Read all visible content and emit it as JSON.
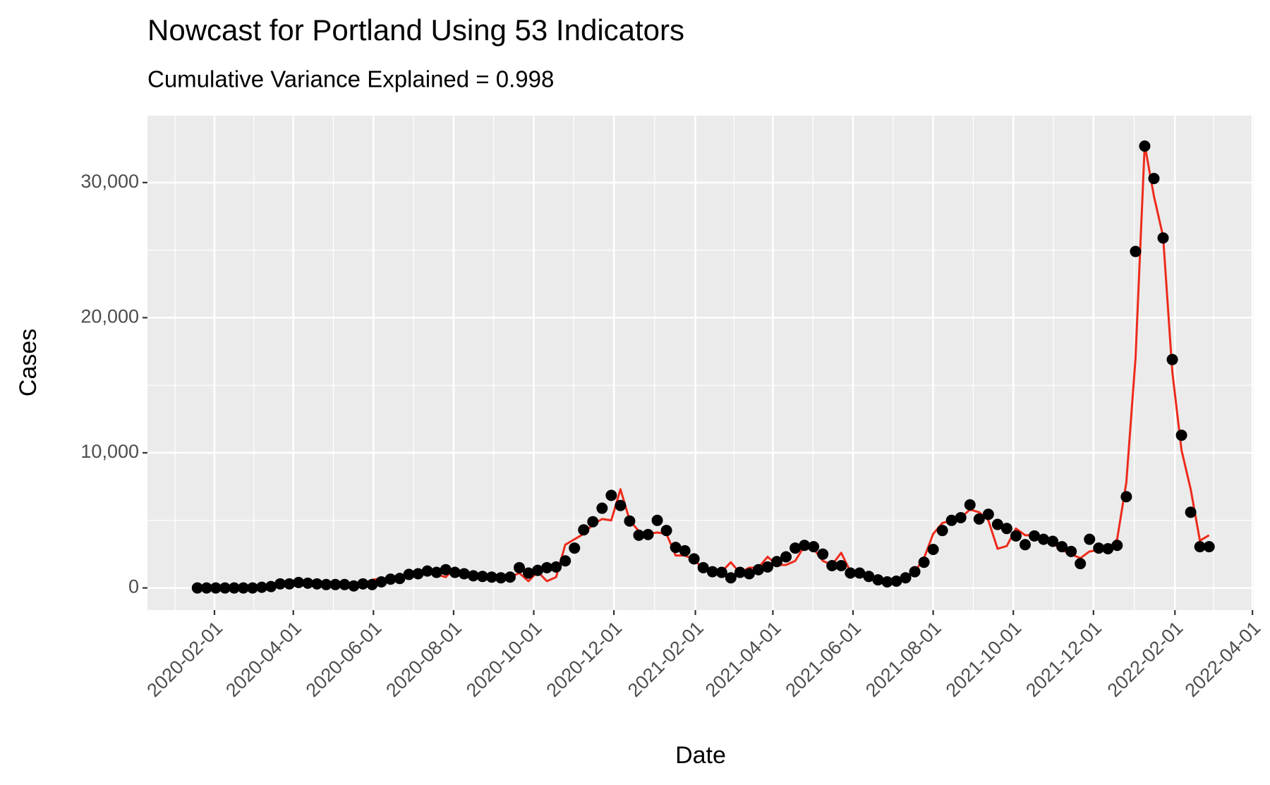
{
  "chart_data": {
    "type": "line",
    "title": "Nowcast for Portland Using 53 Indicators",
    "subtitle": "Cumulative Variance Explained = 0.998",
    "x_label": "Date",
    "y_label": "Cases",
    "x": [
      "2020-01-19",
      "2020-01-26",
      "2020-02-02",
      "2020-02-09",
      "2020-02-16",
      "2020-02-23",
      "2020-03-01",
      "2020-03-08",
      "2020-03-15",
      "2020-03-22",
      "2020-03-29",
      "2020-04-05",
      "2020-04-12",
      "2020-04-19",
      "2020-04-26",
      "2020-05-03",
      "2020-05-10",
      "2020-05-17",
      "2020-05-24",
      "2020-05-31",
      "2020-06-07",
      "2020-06-14",
      "2020-06-21",
      "2020-06-28",
      "2020-07-05",
      "2020-07-12",
      "2020-07-19",
      "2020-07-26",
      "2020-08-02",
      "2020-08-09",
      "2020-08-16",
      "2020-08-23",
      "2020-08-30",
      "2020-09-06",
      "2020-09-13",
      "2020-09-20",
      "2020-09-27",
      "2020-10-04",
      "2020-10-11",
      "2020-10-18",
      "2020-10-25",
      "2020-11-01",
      "2020-11-08",
      "2020-11-15",
      "2020-11-22",
      "2020-11-29",
      "2020-12-06",
      "2020-12-13",
      "2020-12-20",
      "2020-12-27",
      "2021-01-03",
      "2021-01-10",
      "2021-01-17",
      "2021-01-24",
      "2021-01-31",
      "2021-02-07",
      "2021-02-14",
      "2021-02-21",
      "2021-02-28",
      "2021-03-07",
      "2021-03-14",
      "2021-03-21",
      "2021-03-28",
      "2021-04-04",
      "2021-04-11",
      "2021-04-18",
      "2021-04-25",
      "2021-05-02",
      "2021-05-09",
      "2021-05-16",
      "2021-05-23",
      "2021-05-30",
      "2021-06-06",
      "2021-06-13",
      "2021-06-20",
      "2021-06-27",
      "2021-07-04",
      "2021-07-11",
      "2021-07-18",
      "2021-07-25",
      "2021-08-01",
      "2021-08-08",
      "2021-08-15",
      "2021-08-22",
      "2021-08-29",
      "2021-09-05",
      "2021-09-12",
      "2021-09-19",
      "2021-09-26",
      "2021-10-03",
      "2021-10-10",
      "2021-10-17",
      "2021-10-24",
      "2021-10-31",
      "2021-11-07",
      "2021-11-14",
      "2021-11-21",
      "2021-11-28",
      "2021-12-05",
      "2021-12-12",
      "2021-12-19",
      "2021-12-26",
      "2022-01-02",
      "2022-01-09",
      "2022-01-16",
      "2022-01-23",
      "2022-01-30",
      "2022-02-06",
      "2022-02-13",
      "2022-02-20",
      "2022-02-27"
    ],
    "series": [
      {
        "style": "line",
        "color": "#ee2a1b",
        "values": [
          0,
          0,
          0,
          0,
          0,
          0,
          0,
          50,
          100,
          300,
          300,
          400,
          350,
          300,
          250,
          250,
          250,
          150,
          300,
          600,
          700,
          700,
          700,
          1000,
          1050,
          1100,
          1000,
          800,
          1500,
          1050,
          900,
          1000,
          800,
          750,
          800,
          1100,
          500,
          1200,
          500,
          800,
          3200,
          3600,
          4000,
          4700,
          5100,
          5000,
          7300,
          5000,
          4200,
          4000,
          4100,
          4000,
          2400,
          2400,
          2100,
          1400,
          1300,
          1200,
          1900,
          1100,
          1500,
          1500,
          2300,
          1700,
          1700,
          2000,
          3100,
          2900,
          2000,
          1700,
          2600,
          1200,
          1100,
          850,
          600,
          450,
          500,
          750,
          1200,
          2200,
          4000,
          4800,
          5000,
          5200,
          5800,
          5600,
          5000,
          2900,
          3100,
          4400,
          3900,
          3900,
          3800,
          3300,
          2800,
          2500,
          2200,
          2700,
          2800,
          2900,
          3600,
          7800,
          17000,
          32800,
          29000,
          26000,
          16000,
          10200,
          7300,
          3500,
          3900
        ]
      },
      {
        "style": "points",
        "color": "#000000",
        "values": [
          0,
          0,
          0,
          0,
          0,
          0,
          0,
          50,
          100,
          300,
          300,
          400,
          350,
          300,
          250,
          250,
          250,
          150,
          300,
          250,
          450,
          650,
          700,
          1000,
          1050,
          1250,
          1150,
          1350,
          1150,
          1050,
          900,
          850,
          800,
          750,
          800,
          1500,
          1100,
          1300,
          1500,
          1550,
          2000,
          2950,
          4300,
          4900,
          5900,
          6850,
          6100,
          4950,
          3900,
          3950,
          5000,
          4250,
          3000,
          2750,
          2150,
          1500,
          1200,
          1150,
          750,
          1150,
          1050,
          1350,
          1550,
          1950,
          2300,
          2950,
          3150,
          3050,
          2500,
          1650,
          1650,
          1100,
          1100,
          850,
          600,
          450,
          500,
          750,
          1200,
          1900,
          2850,
          4250,
          5000,
          5200,
          6150,
          5100,
          5450,
          4700,
          4400,
          3850,
          3200,
          3850,
          3600,
          3450,
          3050,
          2700,
          1800,
          3600,
          2950,
          2900,
          3150,
          6750,
          24900,
          32700,
          30300,
          25900,
          16900,
          11300,
          5600,
          3050,
          3050
        ]
      }
    ],
    "xlim": [
      "2019-12-12",
      "2022-04-02"
    ],
    "xticks": [
      "2020-02-01",
      "2020-04-01",
      "2020-06-01",
      "2020-08-01",
      "2020-10-01",
      "2020-12-01",
      "2021-02-01",
      "2021-04-01",
      "2021-06-01",
      "2021-08-01",
      "2021-10-01",
      "2021-12-01",
      "2022-02-01",
      "2022-04-01"
    ],
    "ylim": [
      -1640,
      34950
    ],
    "yticks": [
      0,
      {
        "value": 10000,
        "label": "10,000"
      },
      {
        "value": 20000,
        "label": "20,000"
      },
      {
        "value": 30000,
        "label": "30,000"
      }
    ],
    "grid": true,
    "minor_grid": true,
    "panel_color": "#ebebeb"
  }
}
